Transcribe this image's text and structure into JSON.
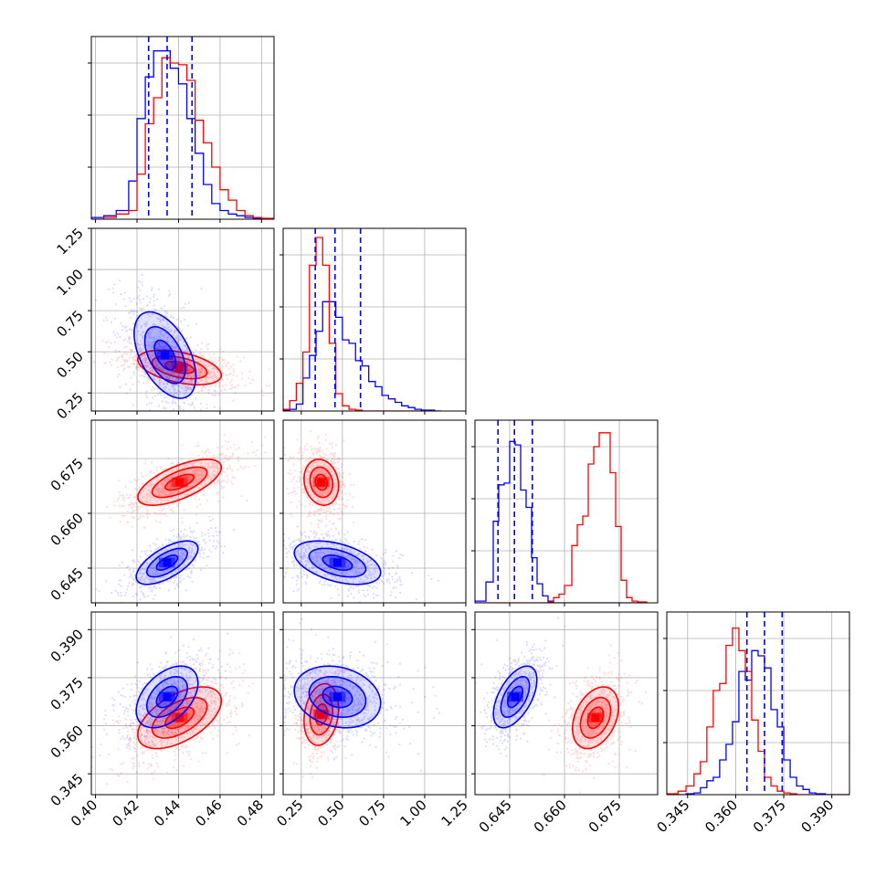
{
  "chart_data": {
    "type": "corner",
    "parameter_count": 4,
    "grid": true,
    "colors": {
      "series_a": "#0000ff",
      "series_b": "#ff0000",
      "grid": "#b0b0b0",
      "frame": "#000000"
    },
    "series": [
      {
        "color": "#0000ff",
        "quantiles": [
          [
            0.4256,
            0.4345,
            0.4465
          ],
          [
            0.335,
            0.455,
            0.61
          ],
          [
            0.6418,
            0.6463,
            0.6512
          ],
          [
            0.3635,
            0.369,
            0.3745
          ]
        ],
        "peaks": [
          {
            "x": 0.431,
            "y": 0.48
          },
          {
            "x": 0.431,
            "y": 0.646
          },
          {
            "x": 0.431,
            "y": 0.367
          },
          {
            "x": 0.47,
            "y": 0.646
          },
          {
            "x": 0.42,
            "y": 0.369
          },
          {
            "x": 0.646,
            "y": 0.368
          }
        ]
      },
      {
        "color": "#ff0000",
        "peaks": [
          {
            "x": 0.441,
            "y": 0.4
          },
          {
            "x": 0.441,
            "y": 0.668
          },
          {
            "x": 0.437,
            "y": 0.362
          },
          {
            "x": 0.37,
            "y": 0.668
          },
          {
            "x": 0.37,
            "y": 0.364
          },
          {
            "x": 0.669,
            "y": 0.362
          }
        ]
      }
    ],
    "axes": [
      {
        "ticks": [
          "0.40",
          "0.42",
          "0.44",
          "0.46",
          "0.48"
        ],
        "range": [
          0.398,
          0.486
        ]
      },
      {
        "ticks": [
          "0.25",
          "0.50",
          "0.75",
          "1.00",
          "1.25"
        ],
        "range": [
          0.14,
          1.25
        ]
      },
      {
        "ticks": [
          "0.645",
          "0.660",
          "0.675"
        ],
        "range": [
          0.6355,
          0.6855
        ]
      },
      {
        "ticks": [
          "0.345",
          "0.360",
          "0.375",
          "0.390"
        ],
        "range": [
          0.3385,
          0.3955
        ]
      }
    ],
    "histograms": [
      {
        "edges": [
          0.398,
          0.404,
          0.41,
          0.416,
          0.42,
          0.424,
          0.428,
          0.432,
          0.436,
          0.44,
          0.444,
          0.448,
          0.452,
          0.456,
          0.46,
          0.464,
          0.468,
          0.472,
          0.476,
          0.48,
          0.486
        ],
        "series": [
          {
            "color": "#0000ff",
            "values": [
              0.01,
              0.02,
              0.05,
              0.22,
              0.58,
              0.82,
              0.97,
              0.97,
              0.87,
              0.78,
              0.58,
              0.38,
              0.2,
              0.09,
              0.05,
              0.03,
              0.02,
              0.01,
              0.005,
              0
            ]
          },
          {
            "color": "#ff0000",
            "values": [
              0,
              0.01,
              0.03,
              0.05,
              0.26,
              0.55,
              0.7,
              0.93,
              0.9,
              0.89,
              0.8,
              0.57,
              0.44,
              0.3,
              0.17,
              0.11,
              0.05,
              0.02,
              0.01,
              0.005
            ]
          }
        ]
      },
      {
        "edges": [
          0.14,
          0.18,
          0.22,
          0.26,
          0.3,
          0.34,
          0.38,
          0.42,
          0.46,
          0.5,
          0.54,
          0.58,
          0.62,
          0.66,
          0.7,
          0.74,
          0.78,
          0.82,
          0.86,
          0.9,
          0.94,
          0.98,
          1.02,
          1.06,
          1.1
        ],
        "series": [
          {
            "color": "#0000ff",
            "values": [
              0.005,
              0.01,
              0.04,
              0.19,
              0.32,
              0.46,
              0.63,
              0.63,
              0.54,
              0.41,
              0.39,
              0.29,
              0.26,
              0.17,
              0.14,
              0.09,
              0.07,
              0.05,
              0.03,
              0.02,
              0.01,
              0.005,
              0.005,
              0
            ]
          },
          {
            "color": "#ff0000",
            "values": [
              0.01,
              0.06,
              0.16,
              0.34,
              0.84,
              1.0,
              0.84,
              0.39,
              0.1,
              0.03,
              0.01,
              0.005,
              0,
              0,
              0,
              0,
              0,
              0,
              0,
              0,
              0,
              0,
              0,
              0
            ]
          }
        ]
      },
      {
        "edges": [
          0.6355,
          0.6385,
          0.6405,
          0.642,
          0.6435,
          0.645,
          0.6465,
          0.648,
          0.6495,
          0.651,
          0.6525,
          0.654,
          0.6555,
          0.657,
          0.6585,
          0.66,
          0.662,
          0.6635,
          0.665,
          0.6665,
          0.668,
          0.6695,
          0.671,
          0.6725,
          0.674,
          0.6755,
          0.677,
          0.6785,
          0.68,
          0.6825
        ],
        "series": [
          {
            "color": "#0000ff",
            "values": [
              0.01,
              0.12,
              0.47,
              0.68,
              0.69,
              0.93,
              0.91,
              0.65,
              0.55,
              0.26,
              0.11,
              0.04,
              0.01,
              0,
              0,
              0,
              0,
              0,
              0,
              0,
              0,
              0,
              0,
              0,
              0,
              0,
              0,
              0,
              0
            ]
          },
          {
            "color": "#ff0000",
            "values": [
              0,
              0,
              0,
              0,
              0,
              0,
              0,
              0,
              0,
              0,
              0,
              0,
              0.005,
              0.03,
              0.05,
              0.1,
              0.33,
              0.45,
              0.5,
              0.8,
              0.9,
              0.98,
              0.98,
              0.75,
              0.44,
              0.13,
              0.03,
              0.01,
              0.005
            ]
          }
        ]
      },
      {
        "edges": [
          0.3385,
          0.342,
          0.3445,
          0.347,
          0.349,
          0.351,
          0.353,
          0.355,
          0.357,
          0.359,
          0.361,
          0.363,
          0.365,
          0.367,
          0.369,
          0.371,
          0.373,
          0.375,
          0.377,
          0.379,
          0.381,
          0.383,
          0.385,
          0.388,
          0.3955
        ],
        "series": [
          {
            "color": "#0000ff",
            "values": [
              0,
              0,
              0.005,
              0.01,
              0.04,
              0.08,
              0.1,
              0.2,
              0.29,
              0.42,
              0.71,
              0.66,
              0.83,
              0.8,
              0.73,
              0.49,
              0.39,
              0.2,
              0.1,
              0.05,
              0.03,
              0.01,
              0.005,
              0
            ]
          },
          {
            "color": "#ff0000",
            "values": [
              0.005,
              0.02,
              0.05,
              0.12,
              0.19,
              0.39,
              0.6,
              0.64,
              0.86,
              0.96,
              0.83,
              0.71,
              0.43,
              0.25,
              0.1,
              0.05,
              0.02,
              0.01,
              0.005,
              0,
              0,
              0,
              0,
              0
            ]
          }
        ]
      }
    ],
    "joint": [
      {
        "row": 1,
        "col": 0,
        "blue": {
          "cx": 0.4335,
          "cy": 0.48,
          "sx": 0.0085,
          "sy": 0.15,
          "rho": -0.5
        },
        "red": {
          "cx": 0.4405,
          "cy": 0.405,
          "sx": 0.0115,
          "sy": 0.06,
          "rho": -0.45
        }
      },
      {
        "row": 2,
        "col": 0,
        "blue": {
          "cx": 0.4345,
          "cy": 0.6465,
          "sx": 0.0085,
          "sy": 0.0034,
          "rho": 0.65
        },
        "red": {
          "cx": 0.4405,
          "cy": 0.6685,
          "sx": 0.0115,
          "sy": 0.0036,
          "rho": 0.65
        }
      },
      {
        "row": 2,
        "col": 1,
        "blue": {
          "cx": 0.47,
          "cy": 0.6465,
          "sx": 0.15,
          "sy": 0.0034,
          "rho": -0.45
        },
        "red": {
          "cx": 0.372,
          "cy": 0.6685,
          "sx": 0.06,
          "sy": 0.0036,
          "rho": -0.15
        }
      },
      {
        "row": 3,
        "col": 0,
        "blue": {
          "cx": 0.4345,
          "cy": 0.369,
          "sx": 0.0085,
          "sy": 0.0055,
          "rho": 0.45
        },
        "red": {
          "cx": 0.4405,
          "cy": 0.3625,
          "sx": 0.0115,
          "sy": 0.0055,
          "rho": 0.55
        }
      },
      {
        "row": 3,
        "col": 1,
        "blue": {
          "cx": 0.47,
          "cy": 0.369,
          "sx": 0.15,
          "sy": 0.0055,
          "rho": -0.2
        },
        "red": {
          "cx": 0.372,
          "cy": 0.3635,
          "sx": 0.06,
          "sy": 0.0055,
          "rho": 0.2
        }
      },
      {
        "row": 3,
        "col": 2,
        "blue": {
          "cx": 0.6465,
          "cy": 0.369,
          "sx": 0.0034,
          "sy": 0.0055,
          "rho": 0.55
        },
        "red": {
          "cx": 0.6685,
          "cy": 0.3625,
          "sx": 0.0036,
          "sy": 0.0055,
          "rho": 0.35
        }
      }
    ]
  }
}
